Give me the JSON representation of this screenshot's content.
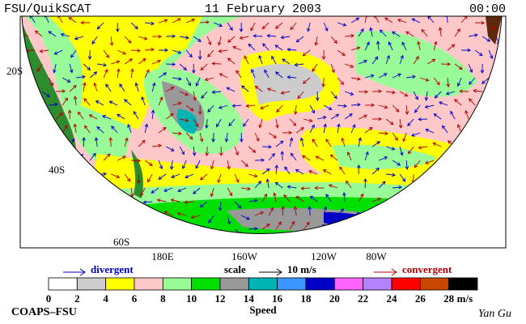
{
  "header": {
    "left": "FSU/QuikSCAT",
    "center": "11 February 2003",
    "right": "00:00"
  },
  "map": {
    "lat_labels": [
      "20S",
      "40S",
      "60S"
    ],
    "lon_labels": [
      "180E",
      "160W",
      "120W",
      "80W"
    ]
  },
  "legend": {
    "divergent": "divergent",
    "scale": "scale",
    "scale_value": "10 m/s",
    "convergent": "convergent"
  },
  "colorbar": {
    "colors": [
      "#ffffff",
      "#cccccc",
      "#ffff00",
      "#ffc8c8",
      "#98fb98",
      "#00e000",
      "#999999",
      "#00b4b4",
      "#3c96ff",
      "#0000c8",
      "#ff64ff",
      "#b482ff",
      "#ff0000",
      "#c84600",
      "#000000"
    ],
    "labels": [
      "0",
      "2",
      "4",
      "6",
      "8",
      "10",
      "12",
      "14",
      "16",
      "18",
      "20",
      "22",
      "24",
      "26",
      "28"
    ],
    "unit": "m/s",
    "title": "Speed"
  },
  "footer": {
    "left": "COAPS–FSU",
    "right": "Yan Gu"
  }
}
